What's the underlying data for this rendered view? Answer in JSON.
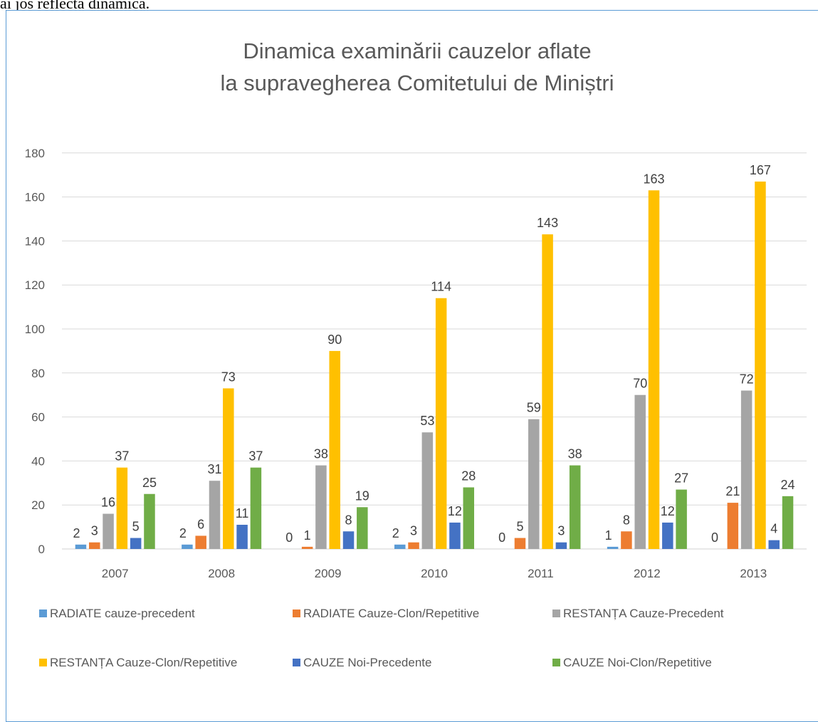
{
  "page": {
    "intro_text": "ai jos reflectă dinamica."
  },
  "chart_data": {
    "type": "bar",
    "title_lines": [
      "Dinamica examinării cauzelor aflate",
      "la supravegherea Comitetului de Miniștri"
    ],
    "categories": [
      "2007",
      "2008",
      "2009",
      "2010",
      "2011",
      "2012",
      "2013"
    ],
    "ylim": [
      0,
      180
    ],
    "yticks": [
      0,
      20,
      40,
      60,
      80,
      100,
      120,
      140,
      160,
      180
    ],
    "grid": true,
    "legend_position": "bottom",
    "series": [
      {
        "name": "RADIATE cauze-precedent",
        "color": "#5b9bd5",
        "values": [
          2,
          2,
          0,
          2,
          0,
          1,
          null
        ],
        "labels": [
          "2",
          "2",
          "0",
          "2",
          "0",
          "1",
          "0"
        ]
      },
      {
        "name": "RADIATE Cauze-Clon/Repetitive",
        "color": "#ed7d31",
        "values": [
          3,
          6,
          1,
          3,
          5,
          8,
          21
        ],
        "labels": [
          "3",
          "6",
          "1",
          "3",
          "5",
          "8",
          "21"
        ]
      },
      {
        "name": "RESTANȚA Cauze-Precedent",
        "color": "#a5a5a5",
        "values": [
          16,
          31,
          38,
          53,
          59,
          70,
          72
        ],
        "labels": [
          "16",
          "31",
          "38",
          "53",
          "59",
          "70",
          "72"
        ]
      },
      {
        "name": "RESTANȚA Cauze-Clon/Repetitive",
        "color": "#ffc000",
        "values": [
          37,
          73,
          90,
          114,
          143,
          163,
          167
        ],
        "labels": [
          "37",
          "73",
          "90",
          "114",
          "143",
          "163",
          "167"
        ]
      },
      {
        "name": "CAUZE Noi-Precedente",
        "color": "#4472c4",
        "values": [
          5,
          11,
          8,
          12,
          3,
          12,
          4
        ],
        "labels": [
          "5",
          "11",
          "8",
          "12",
          "3",
          "12",
          "4"
        ]
      },
      {
        "name": "CAUZE Noi-Clon/Repetitive",
        "color": "#70ad47",
        "values": [
          25,
          37,
          19,
          28,
          38,
          27,
          24
        ],
        "labels": [
          "25",
          "37",
          "19",
          "28",
          "38",
          "27",
          "24"
        ]
      }
    ]
  }
}
